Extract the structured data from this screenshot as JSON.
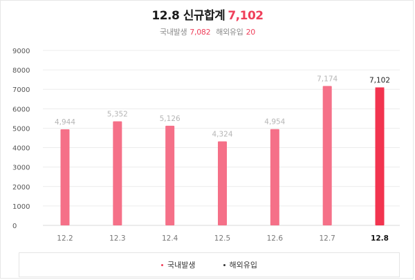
{
  "header": {
    "title": "12.8 신규합계",
    "total": "7,102",
    "domestic_label": "국내발생",
    "domestic_value": "7,082",
    "overseas_label": "해외유입",
    "overseas_value": "20"
  },
  "colors": {
    "accent": "#ef3f5a",
    "bar": "#f57088",
    "bar_highlight": "#f2344f",
    "overseas": "#333333"
  },
  "chart_data": {
    "type": "bar",
    "categories": [
      "12.2",
      "12.3",
      "12.4",
      "12.5",
      "12.6",
      "12.7",
      "12.8"
    ],
    "series": [
      {
        "name": "국내발생",
        "values": [
          4944,
          5352,
          5126,
          4324,
          4954,
          7174,
          7082
        ]
      },
      {
        "name": "해외유입",
        "values": [
          0,
          0,
          0,
          0,
          0,
          0,
          20
        ]
      }
    ],
    "data_labels": [
      "4,944",
      "5,352",
      "5,126",
      "4,324",
      "4,954",
      "7,174",
      "7,102"
    ],
    "highlight_index": 6,
    "yticks": [
      0,
      1000,
      2000,
      3000,
      4000,
      5000,
      6000,
      7000,
      8000,
      9000
    ],
    "ylim": [
      0,
      9000
    ],
    "grid": true,
    "legend_position": "bottom"
  }
}
